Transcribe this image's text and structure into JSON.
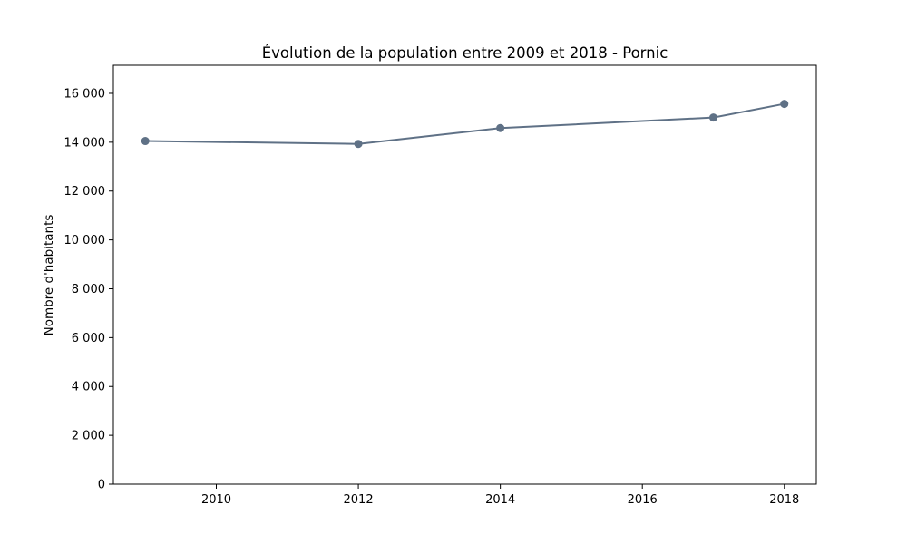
{
  "chart_data": {
    "type": "line",
    "title": "Évolution de la population entre 2009 et 2018 - Pornic",
    "xlabel": "",
    "ylabel": "Nombre d'habitants",
    "x": [
      2009,
      2012,
      2014,
      2017,
      2018
    ],
    "series": [
      {
        "values": [
          14050,
          13930,
          14580,
          15010,
          15570
        ],
        "color": "#5f7186"
      }
    ],
    "xlim": [
      2008.55,
      2018.45
    ],
    "ylim": [
      0,
      17150
    ],
    "xticks": [
      2010,
      2012,
      2014,
      2016,
      2018
    ],
    "xtick_labels": [
      "2010",
      "2012",
      "2014",
      "2016",
      "2018"
    ],
    "yticks": [
      0,
      2000,
      4000,
      6000,
      8000,
      10000,
      12000,
      14000,
      16000
    ],
    "ytick_labels": [
      "0",
      "2 000",
      "4 000",
      "6 000",
      "8 000",
      "10 000",
      "12 000",
      "14 000",
      "16 000"
    ],
    "grid": false,
    "legend": "none"
  }
}
